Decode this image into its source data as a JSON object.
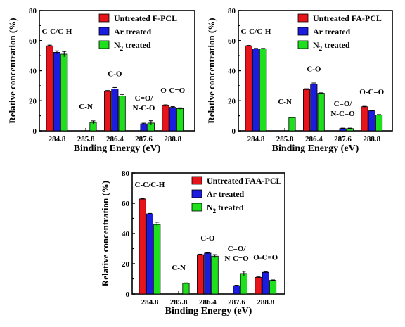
{
  "chart_data": [
    {
      "type": "bar",
      "categories": [
        "284.8",
        "285.8",
        "286.4",
        "287.6",
        "288.8"
      ],
      "xlabel": "Binding Energy (eV)",
      "ylabel": "Relative concentration (%)",
      "ylim": [
        0,
        80
      ],
      "yticks": [
        "0",
        "20",
        "40",
        "60",
        "80"
      ],
      "legend_position": "top-right",
      "series": [
        {
          "name": "Untreated F-PCL",
          "color": "#e8141c",
          "values": [
            56.5,
            null,
            26.3,
            null,
            16.8
          ]
        },
        {
          "name": "Ar treated",
          "color": "#1c1ce0",
          "values": [
            52.2,
            null,
            27.8,
            4.6,
            15.6
          ]
        },
        {
          "name": "N2 treated",
          "color": "#1ee01c",
          "values": [
            51.0,
            5.6,
            23.2,
            5.2,
            14.8
          ]
        }
      ],
      "errors": [
        [
          0.5,
          null,
          0.5,
          null,
          0.5
        ],
        [
          1.0,
          null,
          1.0,
          0.5,
          0.5
        ],
        [
          1.8,
          1.0,
          1.0,
          1.5,
          0.5
        ]
      ],
      "annotations": [
        {
          "text": "C-C/C-H",
          "category": 0
        },
        {
          "text": "C-N",
          "category": 1
        },
        {
          "text": "C-O",
          "category": 2
        },
        {
          "text": "C=O/",
          "category": 3,
          "line": 0
        },
        {
          "text": "N-C-O",
          "category": 3,
          "line": 1
        },
        {
          "text": "O-C=O",
          "category": 4
        }
      ]
    },
    {
      "type": "bar",
      "categories": [
        "284.8",
        "285.8",
        "286.4",
        "287.6",
        "288.8"
      ],
      "xlabel": "Binding Energy (eV)",
      "ylabel": "Relative concentration (%)",
      "ylim": [
        0,
        80
      ],
      "yticks": [
        "0",
        "20",
        "40",
        "60",
        "80"
      ],
      "legend_position": "top-right",
      "series": [
        {
          "name": "Untreated FA-PCL",
          "color": "#e8141c",
          "values": [
            56.5,
            null,
            27.5,
            null,
            16.0
          ]
        },
        {
          "name": "Ar treated",
          "color": "#1c1ce0",
          "values": [
            54.5,
            null,
            31.0,
            1.5,
            13.3
          ]
        },
        {
          "name": "N2 treated",
          "color": "#1ee01c",
          "values": [
            54.5,
            8.8,
            25.0,
            1.5,
            10.5
          ]
        }
      ],
      "errors": [
        [
          0.3,
          null,
          0.5,
          null,
          0.3
        ],
        [
          0.3,
          null,
          0.8,
          0.3,
          0.3
        ],
        [
          0.3,
          0.3,
          0.3,
          0.3,
          0.3
        ]
      ],
      "annotations": [
        {
          "text": "C-C/C-H",
          "category": 0
        },
        {
          "text": "C-N",
          "category": 1
        },
        {
          "text": "C-O",
          "category": 2
        },
        {
          "text": "C=O/",
          "category": 3,
          "line": 0
        },
        {
          "text": "N-C=O",
          "category": 3,
          "line": 1
        },
        {
          "text": "O-C=O",
          "category": 4
        }
      ]
    },
    {
      "type": "bar",
      "categories": [
        "284.8",
        "285.8",
        "286.4",
        "287.6",
        "288.8"
      ],
      "xlabel": "Binding Energy (eV)",
      "ylabel": "Relative concentration (%)",
      "ylim": [
        0,
        80
      ],
      "yticks": [
        "0",
        "20",
        "40",
        "60",
        "80"
      ],
      "legend_position": "top-right",
      "series": [
        {
          "name": "Untreated FAA-PCL",
          "color": "#e8141c",
          "values": [
            62.8,
            null,
            26.0,
            null,
            11.0
          ]
        },
        {
          "name": "Ar treated",
          "color": "#1c1ce0",
          "values": [
            53.0,
            null,
            27.0,
            5.5,
            14.3
          ]
        },
        {
          "name": "N2 treated",
          "color": "#1ee01c",
          "values": [
            46.0,
            7.0,
            25.0,
            13.5,
            9.0
          ]
        }
      ],
      "errors": [
        [
          0.3,
          null,
          0.3,
          null,
          0.3
        ],
        [
          0.3,
          null,
          0.3,
          0.3,
          0.3
        ],
        [
          1.5,
          0.3,
          1.0,
          1.5,
          0.3
        ]
      ],
      "annotations": [
        {
          "text": "C-C/C-H",
          "category": 0
        },
        {
          "text": "C-N",
          "category": 1
        },
        {
          "text": "C-O",
          "category": 2
        },
        {
          "text": "C=O/",
          "category": 3,
          "line": 0
        },
        {
          "text": "N-C=O",
          "category": 3,
          "line": 1
        },
        {
          "text": "O-C=O",
          "category": 4
        }
      ]
    }
  ]
}
